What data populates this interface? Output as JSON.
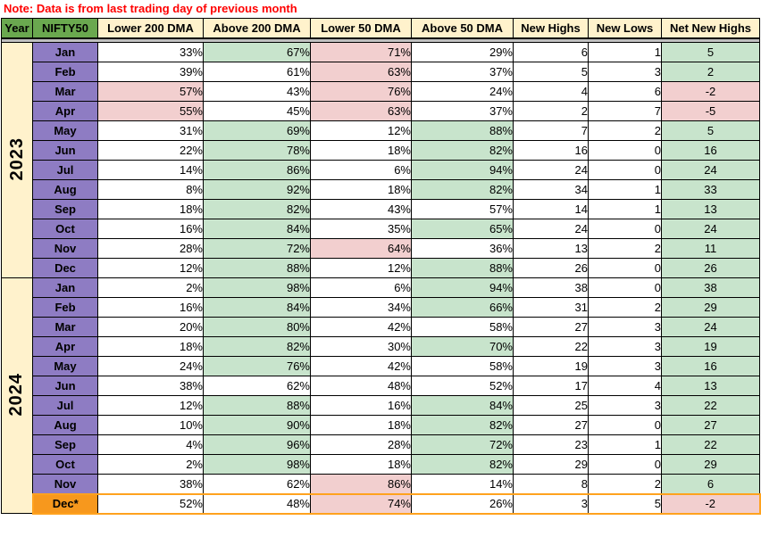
{
  "note": "Note: Data is from last trading day of previous month",
  "colors": {
    "note_red": "#FF0000",
    "header_fill": "#FFF2CC",
    "header_green": "#6AA84F",
    "month_purple": "#8E7CC3",
    "year_cream": "#FFF2CC",
    "divider_gray": "#BFBFBF",
    "dec_orange": "#F7981D",
    "dec_border_orange": "#FFA21E",
    "grid_black": "#000000",
    "fill_map": {
      "w": "#FFFFFF",
      "g": "#C8E4CC",
      "p": "#F2CFCF"
    }
  },
  "table": {
    "columns": [
      "Year",
      "NIFTY50",
      "Lower 200 DMA",
      "Above 200 DMA",
      "Lower 50 DMA",
      "Above 50 DMA",
      "New Highs",
      "New Lows",
      "Net New Highs"
    ],
    "col_header_fills": [
      "green",
      "green",
      "cream",
      "cream",
      "cream",
      "cream",
      "cream",
      "cream",
      "cream"
    ],
    "years": [
      {
        "label": "2023",
        "rows": [
          {
            "month": "Jan",
            "values": [
              "33%",
              "67%",
              "71%",
              "29%",
              "6",
              "1",
              "5"
            ],
            "fills": [
              "w",
              "g",
              "p",
              "w",
              "w",
              "w",
              "g"
            ]
          },
          {
            "month": "Feb",
            "values": [
              "39%",
              "61%",
              "63%",
              "37%",
              "5",
              "3",
              "2"
            ],
            "fills": [
              "w",
              "w",
              "p",
              "w",
              "w",
              "w",
              "g"
            ]
          },
          {
            "month": "Mar",
            "values": [
              "57%",
              "43%",
              "76%",
              "24%",
              "4",
              "6",
              "-2"
            ],
            "fills": [
              "p",
              "w",
              "p",
              "w",
              "w",
              "w",
              "p"
            ]
          },
          {
            "month": "Apr",
            "values": [
              "55%",
              "45%",
              "63%",
              "37%",
              "2",
              "7",
              "-5"
            ],
            "fills": [
              "p",
              "w",
              "p",
              "w",
              "w",
              "w",
              "p"
            ]
          },
          {
            "month": "May",
            "values": [
              "31%",
              "69%",
              "12%",
              "88%",
              "7",
              "2",
              "5"
            ],
            "fills": [
              "w",
              "g",
              "w",
              "g",
              "w",
              "w",
              "g"
            ]
          },
          {
            "month": "Jun",
            "values": [
              "22%",
              "78%",
              "18%",
              "82%",
              "16",
              "0",
              "16"
            ],
            "fills": [
              "w",
              "g",
              "w",
              "g",
              "w",
              "w",
              "g"
            ]
          },
          {
            "month": "Jul",
            "values": [
              "14%",
              "86%",
              "6%",
              "94%",
              "24",
              "0",
              "24"
            ],
            "fills": [
              "w",
              "g",
              "w",
              "g",
              "w",
              "w",
              "g"
            ]
          },
          {
            "month": "Aug",
            "values": [
              "8%",
              "92%",
              "18%",
              "82%",
              "34",
              "1",
              "33"
            ],
            "fills": [
              "w",
              "g",
              "w",
              "g",
              "w",
              "w",
              "g"
            ]
          },
          {
            "month": "Sep",
            "values": [
              "18%",
              "82%",
              "43%",
              "57%",
              "14",
              "1",
              "13"
            ],
            "fills": [
              "w",
              "g",
              "w",
              "w",
              "w",
              "w",
              "g"
            ]
          },
          {
            "month": "Oct",
            "values": [
              "16%",
              "84%",
              "35%",
              "65%",
              "24",
              "0",
              "24"
            ],
            "fills": [
              "w",
              "g",
              "w",
              "g",
              "w",
              "w",
              "g"
            ]
          },
          {
            "month": "Nov",
            "values": [
              "28%",
              "72%",
              "64%",
              "36%",
              "13",
              "2",
              "11"
            ],
            "fills": [
              "w",
              "g",
              "p",
              "w",
              "w",
              "w",
              "g"
            ]
          },
          {
            "month": "Dec",
            "values": [
              "12%",
              "88%",
              "12%",
              "88%",
              "26",
              "0",
              "26"
            ],
            "fills": [
              "w",
              "g",
              "w",
              "g",
              "w",
              "w",
              "g"
            ]
          }
        ]
      },
      {
        "label": "2024",
        "rows": [
          {
            "month": "Jan",
            "values": [
              "2%",
              "98%",
              "6%",
              "94%",
              "38",
              "0",
              "38"
            ],
            "fills": [
              "w",
              "g",
              "w",
              "g",
              "w",
              "w",
              "g"
            ]
          },
          {
            "month": "Feb",
            "values": [
              "16%",
              "84%",
              "34%",
              "66%",
              "31",
              "2",
              "29"
            ],
            "fills": [
              "w",
              "g",
              "w",
              "g",
              "w",
              "w",
              "g"
            ]
          },
          {
            "month": "Mar",
            "values": [
              "20%",
              "80%",
              "42%",
              "58%",
              "27",
              "3",
              "24"
            ],
            "fills": [
              "w",
              "g",
              "w",
              "w",
              "w",
              "w",
              "g"
            ]
          },
          {
            "month": "Apr",
            "values": [
              "18%",
              "82%",
              "30%",
              "70%",
              "22",
              "3",
              "19"
            ],
            "fills": [
              "w",
              "g",
              "w",
              "g",
              "w",
              "w",
              "g"
            ]
          },
          {
            "month": "May",
            "values": [
              "24%",
              "76%",
              "42%",
              "58%",
              "19",
              "3",
              "16"
            ],
            "fills": [
              "w",
              "g",
              "w",
              "w",
              "w",
              "w",
              "g"
            ]
          },
          {
            "month": "Jun",
            "values": [
              "38%",
              "62%",
              "48%",
              "52%",
              "17",
              "4",
              "13"
            ],
            "fills": [
              "w",
              "w",
              "w",
              "w",
              "w",
              "w",
              "g"
            ]
          },
          {
            "month": "Jul",
            "values": [
              "12%",
              "88%",
              "16%",
              "84%",
              "25",
              "3",
              "22"
            ],
            "fills": [
              "w",
              "g",
              "w",
              "g",
              "w",
              "w",
              "g"
            ]
          },
          {
            "month": "Aug",
            "values": [
              "10%",
              "90%",
              "18%",
              "82%",
              "27",
              "0",
              "27"
            ],
            "fills": [
              "w",
              "g",
              "w",
              "g",
              "w",
              "w",
              "g"
            ]
          },
          {
            "month": "Sep",
            "values": [
              "4%",
              "96%",
              "28%",
              "72%",
              "23",
              "1",
              "22"
            ],
            "fills": [
              "w",
              "g",
              "w",
              "g",
              "w",
              "w",
              "g"
            ]
          },
          {
            "month": "Oct",
            "values": [
              "2%",
              "98%",
              "18%",
              "82%",
              "29",
              "0",
              "29"
            ],
            "fills": [
              "w",
              "g",
              "w",
              "g",
              "w",
              "w",
              "g"
            ]
          },
          {
            "month": "Nov",
            "values": [
              "38%",
              "62%",
              "86%",
              "14%",
              "8",
              "2",
              "6"
            ],
            "fills": [
              "w",
              "w",
              "p",
              "w",
              "w",
              "w",
              "g"
            ]
          },
          {
            "month": "Dec*",
            "values": [
              "52%",
              "48%",
              "74%",
              "26%",
              "3",
              "5",
              "-2"
            ],
            "fills": [
              "w",
              "w",
              "p",
              "w",
              "w",
              "w",
              "p"
            ],
            "highlight": true
          }
        ]
      }
    ]
  }
}
